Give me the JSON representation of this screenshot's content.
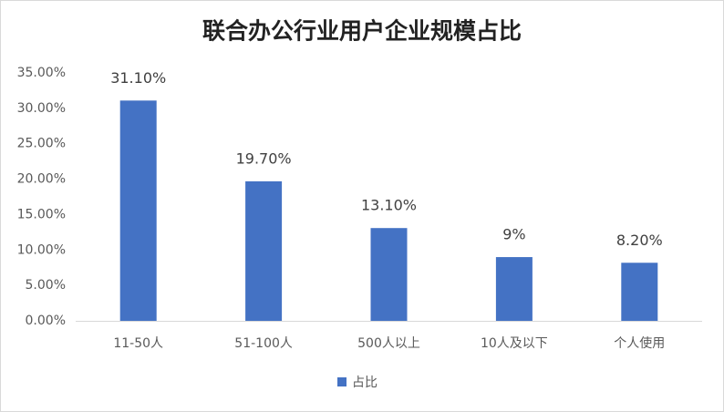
{
  "chart_data": {
    "type": "bar",
    "title": "联合办公行业用户企业规模占比",
    "categories": [
      "11-50人",
      "51-100人",
      "500人以上",
      "10人及以下",
      "个人使用"
    ],
    "series": [
      {
        "name": "占比",
        "color": "#4472c4",
        "values": [
          31.1,
          19.7,
          13.1,
          9,
          8.2
        ],
        "value_labels": [
          "31.10%",
          "19.70%",
          "13.10%",
          "9%",
          "8.20%"
        ]
      }
    ],
    "ylim": [
      0,
      35
    ],
    "yticks": [
      {
        "value": 0,
        "label": "0.00%"
      },
      {
        "value": 5,
        "label": "5.00%"
      },
      {
        "value": 10,
        "label": "10.00%"
      },
      {
        "value": 15,
        "label": "15.00%"
      },
      {
        "value": 20,
        "label": "20.00%"
      },
      {
        "value": 25,
        "label": "25.00%"
      },
      {
        "value": 30,
        "label": "30.00%"
      },
      {
        "value": 35,
        "label": "35.00%"
      }
    ],
    "grid": false,
    "legend": "bottom"
  }
}
